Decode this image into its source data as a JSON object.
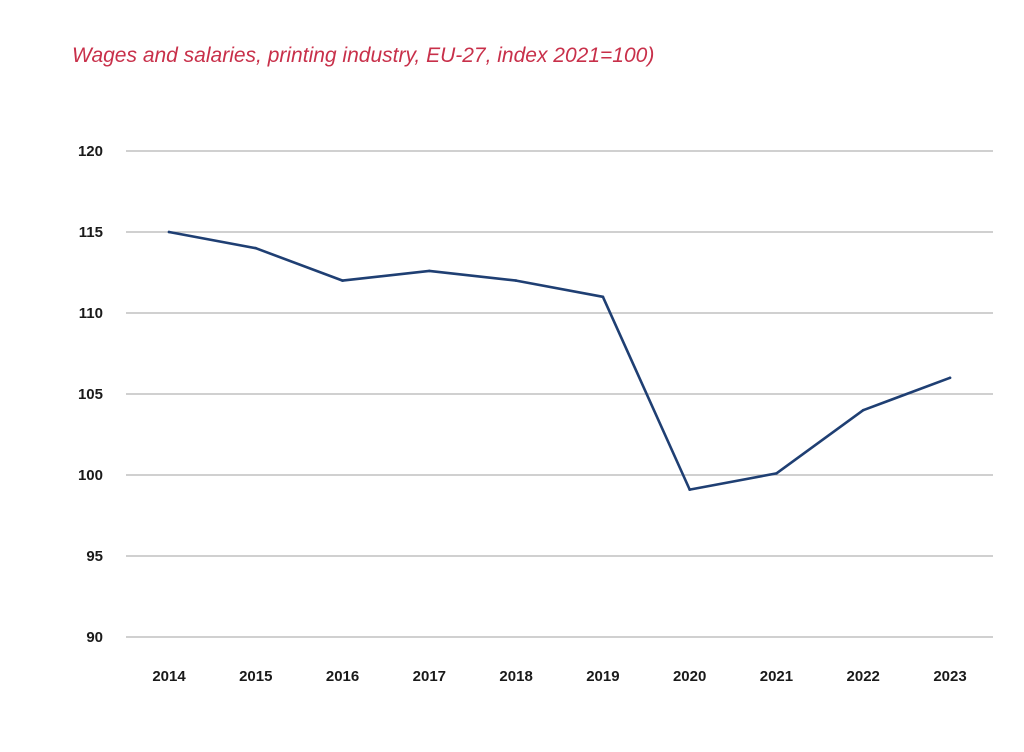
{
  "chart_data": {
    "type": "line",
    "title": "Wages and salaries, printing industry, EU-27, index 2021=100)",
    "xlabel": "",
    "ylabel": "",
    "categories": [
      "2014",
      "2015",
      "2016",
      "2017",
      "2018",
      "2019",
      "2020",
      "2021",
      "2022",
      "2023"
    ],
    "series": [
      {
        "values": [
          115,
          114,
          112,
          112.6,
          112,
          111,
          99.1,
          100.1,
          104,
          106
        ]
      }
    ],
    "ylim": [
      90,
      120
    ],
    "yticks": [
      90,
      95,
      100,
      105,
      110,
      115,
      120
    ],
    "grid": true,
    "legend": "none",
    "colors": {
      "line": "#1f3f73",
      "grid": "#b3b3b3",
      "title": "#c8304a",
      "text": "#1a1a1a"
    }
  }
}
